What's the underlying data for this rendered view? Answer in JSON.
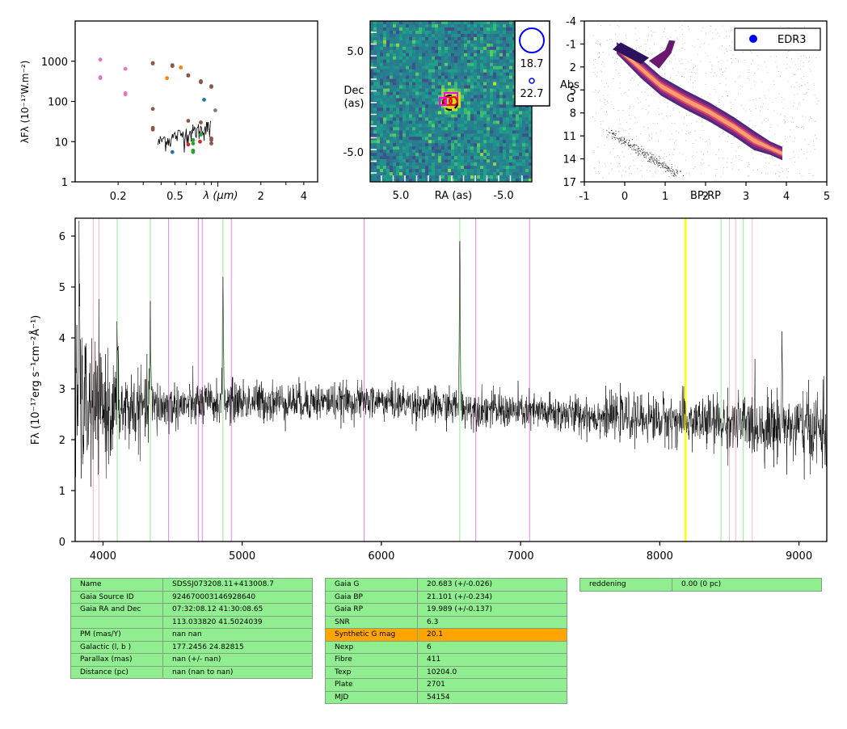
{
  "chart_data": [
    {
      "type": "scatter",
      "panel": "sed",
      "ylabel": "λFλ (10⁻¹⁷W.m⁻²)",
      "xlabel": "λ (μm)",
      "xscale": "log",
      "yscale": "log",
      "xlim": [
        0.1,
        5.0
      ],
      "ylim": [
        1,
        10000
      ],
      "xticks": [
        "0.2",
        "0.5",
        "2",
        "4"
      ],
      "yticks": [
        "1",
        "10",
        "100",
        "1000"
      ],
      "series": [
        {
          "color": "#e377c2",
          "points": [
            [
              0.15,
              1100
            ],
            [
              0.15,
              400
            ],
            [
              0.15,
              380
            ],
            [
              0.225,
              650
            ],
            [
              0.225,
              160
            ],
            [
              0.225,
              150
            ]
          ]
        },
        {
          "color": "#8c564b",
          "points": [
            [
              0.35,
              900
            ],
            [
              0.35,
              880
            ],
            [
              0.35,
              65
            ],
            [
              0.35,
              22
            ],
            [
              0.35,
              20
            ],
            [
              0.48,
              800
            ],
            [
              0.48,
              760
            ],
            [
              0.62,
              450
            ],
            [
              0.62,
              440
            ],
            [
              0.62,
              33
            ],
            [
              0.76,
              320
            ],
            [
              0.76,
              300
            ],
            [
              0.76,
              30
            ],
            [
              0.9,
              240
            ],
            [
              0.9,
              230
            ],
            [
              0.9,
              12
            ],
            [
              0.9,
              11
            ],
            [
              0.9,
              9
            ]
          ]
        },
        {
          "color": "#ff7f0e",
          "points": [
            [
              0.44,
              380
            ],
            [
              0.55,
              700
            ]
          ]
        },
        {
          "color": "#1f77b4",
          "points": [
            [
              0.48,
              5.5
            ],
            [
              0.8,
              110
            ]
          ]
        },
        {
          "color": "#d62728",
          "points": [
            [
              0.62,
              8.5
            ],
            [
              0.75,
              10
            ]
          ]
        },
        {
          "color": "#2ca02c",
          "points": [
            [
              0.67,
              6
            ],
            [
              0.67,
              5.5
            ],
            [
              0.67,
              9
            ],
            [
              0.67,
              11
            ],
            [
              0.76,
              15
            ]
          ]
        },
        {
          "color": "#7f7f7f",
          "points": [
            [
              0.96,
              60
            ]
          ]
        }
      ],
      "line": {
        "color": "#000000",
        "points": [
          [
            0.38,
            9
          ],
          [
            0.42,
            12
          ],
          [
            0.46,
            11
          ],
          [
            0.5,
            14
          ],
          [
            0.55,
            15
          ],
          [
            0.6,
            16
          ],
          [
            0.65,
            17
          ],
          [
            0.7,
            19
          ],
          [
            0.75,
            20
          ],
          [
            0.8,
            21
          ],
          [
            0.85,
            22
          ],
          [
            0.9,
            23
          ]
        ]
      }
    },
    {
      "type": "heatmap",
      "panel": "image",
      "xlabel": "RA (as)",
      "ylabel": "Dec (as)",
      "xticks": [
        "5.0",
        "-5.0"
      ],
      "yticks": [
        "5.0",
        "-5.0"
      ],
      "xlim": [
        10,
        -10
      ],
      "ylim": [
        -10,
        10
      ],
      "legend": [
        {
          "marker": "open-circle-large",
          "label": "18.7"
        },
        {
          "marker": "open-circle-small",
          "label": "22.7"
        }
      ],
      "legend_position": "right"
    },
    {
      "type": "heatmap",
      "panel": "cmd",
      "xlabel": "BP-RP",
      "ylabel": "Abs G",
      "xlim": [
        -1,
        5
      ],
      "ylim": [
        17,
        -4
      ],
      "xticks": [
        "-1",
        "0",
        "1",
        "2",
        "3",
        "4",
        "5"
      ],
      "yticks": [
        "-4",
        "-1",
        "2",
        "5",
        "8",
        "11",
        "14",
        "17"
      ],
      "legend": [
        {
          "marker": "filled-circle",
          "color": "#0000ff",
          "label": "EDR3"
        }
      ],
      "legend_position": "top-right"
    },
    {
      "type": "line",
      "panel": "spectrum",
      "ylabel": "Fλ (10⁻¹⁷erg s⁻¹cm⁻²Å⁻¹)",
      "xlim": [
        3800,
        9200
      ],
      "ylim": [
        0,
        6.35
      ],
      "xticks": [
        4000,
        5000,
        6000,
        7000,
        8000,
        9000
      ],
      "yticks": [
        0,
        1,
        2,
        3,
        4,
        5,
        6
      ],
      "lines": {
        "pink": [
          3930,
          3970,
          8500,
          8545,
          8665
        ],
        "green": [
          4102,
          4340,
          4862,
          6563,
          8440,
          8600
        ],
        "violet": [
          4471,
          4686,
          4713,
          4922,
          5876,
          6678,
          7065
        ],
        "yellow": [
          8185
        ]
      },
      "features": [
        {
          "center": 4102,
          "height": 1.3
        },
        {
          "center": 4340,
          "height": 2.0
        },
        {
          "center": 4862,
          "height": 2.5
        },
        {
          "center": 6563,
          "height": 3.3
        },
        {
          "center": 3830,
          "height": 2.5
        },
        {
          "center": 8880,
          "height": 1.7
        }
      ],
      "continuum": [
        [
          3800,
          2.6
        ],
        [
          4200,
          2.6
        ],
        [
          5000,
          2.75
        ],
        [
          6000,
          2.75
        ],
        [
          7000,
          2.55
        ],
        [
          8000,
          2.4
        ],
        [
          9200,
          2.2
        ]
      ],
      "noise": [
        [
          3800,
          1.5
        ],
        [
          4100,
          0.8
        ],
        [
          4500,
          0.4
        ],
        [
          6000,
          0.3
        ],
        [
          7500,
          0.35
        ],
        [
          8500,
          0.5
        ],
        [
          9200,
          0.7
        ]
      ]
    }
  ],
  "tables": [
    {
      "rows": [
        [
          "Name",
          "SDSSJ073208.11+413008.7"
        ],
        [
          "Gaia Source ID",
          "924670003146928640"
        ],
        [
          "Gaia RA and Dec",
          "07:32:08.12    41:30:08.65"
        ],
        [
          "",
          "113.033820    41.5024039"
        ],
        [
          "PM (mas/Y)",
          "nan    nan"
        ],
        [
          "Galactic (l, b )",
          "177.2456    24.82815"
        ],
        [
          "Parallax (mas)",
          "nan (+/- nan)"
        ],
        [
          "Distance (pc)",
          "nan (nan to nan)"
        ]
      ]
    },
    {
      "rows": [
        [
          "Gaia G",
          "20.683 (+/-0.026)"
        ],
        [
          "Gaia BP",
          "21.101 (+/-0.234)"
        ],
        [
          "Gaia RP",
          "19.989 (+/-0.137)"
        ],
        [
          "SNR",
          "6.3"
        ],
        [
          "Synthetic G mag",
          "20.1"
        ],
        [
          "Nexp",
          "6"
        ],
        [
          "Fibre",
          "411"
        ],
        [
          "Texp",
          "10204.0"
        ],
        [
          "Plate",
          "2701"
        ],
        [
          "MJD",
          "54154"
        ]
      ],
      "highlight_row": 4,
      "highlight_color": "#ffa500"
    },
    {
      "rows": [
        [
          "reddening",
          "0.00 (0 pc)"
        ]
      ]
    }
  ],
  "colors": {
    "cell": "#90ee90",
    "highlight": "#ffa500",
    "cell_border": "#7fa37f"
  }
}
